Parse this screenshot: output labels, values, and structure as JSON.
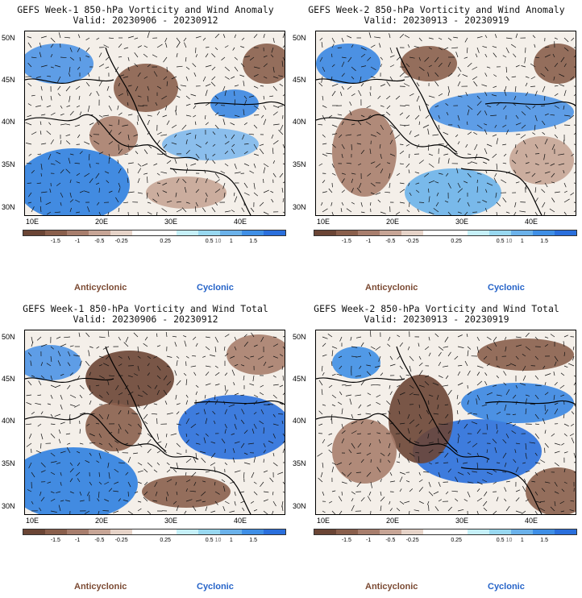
{
  "panels": [
    {
      "title": "GEFS Week-1 850-hPa Vorticity and Wind Anomaly",
      "valid": "Valid: 20230906 - 20230912"
    },
    {
      "title": "GEFS Week-2 850-hPa Vorticity and Wind Anomaly",
      "valid": "Valid: 20230913 - 20230919"
    },
    {
      "title": "GEFS Week-1 850-hPa Vorticity and Wind Total",
      "valid": "Valid: 20230906 - 20230912"
    },
    {
      "title": "GEFS Week-2 850-hPa Vorticity and Wind Total",
      "valid": "Valid: 20230913 - 20230919"
    }
  ],
  "lat_labels": [
    "50N",
    "45N",
    "40N",
    "35N",
    "30N"
  ],
  "lon_labels": [
    "10E",
    "20E",
    "30E",
    "40E"
  ],
  "colorbar_ticks": [
    "-1.5",
    "-1",
    "-0.5",
    "-0.25",
    "0.25",
    "0.5",
    "1",
    "1.5"
  ],
  "colorbar_unit_label": "10",
  "colorbar_colors": [
    "#6b4535",
    "#8a5f4c",
    "#a87e6d",
    "#c7a596",
    "#e6d3c8",
    "#ffffff",
    "#ffffff",
    "#c6f0f8",
    "#98d8f0",
    "#6bb2ea",
    "#3f8fe6",
    "#2a6fdc"
  ],
  "legend": {
    "anticyclonic": "Anticyclonic",
    "cyclonic": "Cyclonic"
  }
}
